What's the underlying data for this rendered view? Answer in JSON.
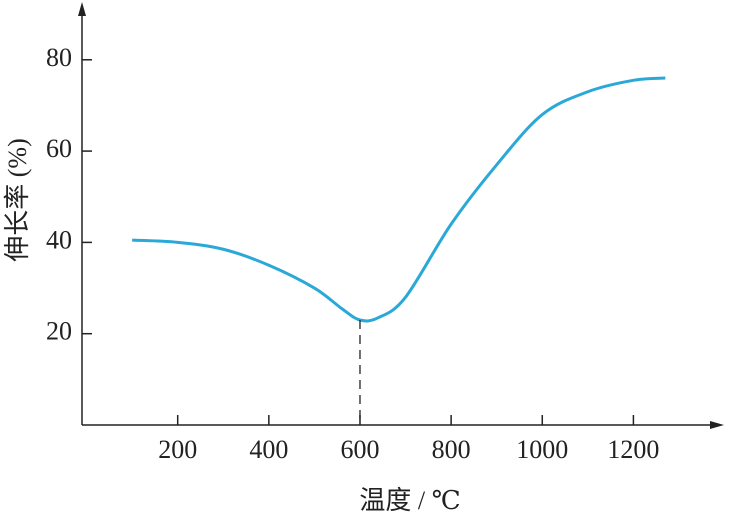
{
  "chart_data": {
    "type": "line",
    "xlabel": "温度 / ℃",
    "ylabel": "伸长率 (%)",
    "x": [
      100,
      200,
      300,
      400,
      500,
      560,
      600,
      640,
      700,
      800,
      900,
      1000,
      1100,
      1200,
      1270
    ],
    "series": [
      {
        "name": "伸长率",
        "color": "#2aa8d8",
        "values": [
          40.5,
          40,
          38.5,
          35,
          30,
          25.5,
          23,
          23.5,
          28,
          44,
          57,
          68,
          73,
          75.5,
          76
        ]
      }
    ],
    "xlim": [
      -10,
      1390
    ],
    "ylim": [
      0,
      92
    ],
    "xticks": [
      200,
      400,
      600,
      800,
      1000,
      1200
    ],
    "yticks": [
      20,
      40,
      60,
      80
    ],
    "vline": 600,
    "grid": false
  }
}
